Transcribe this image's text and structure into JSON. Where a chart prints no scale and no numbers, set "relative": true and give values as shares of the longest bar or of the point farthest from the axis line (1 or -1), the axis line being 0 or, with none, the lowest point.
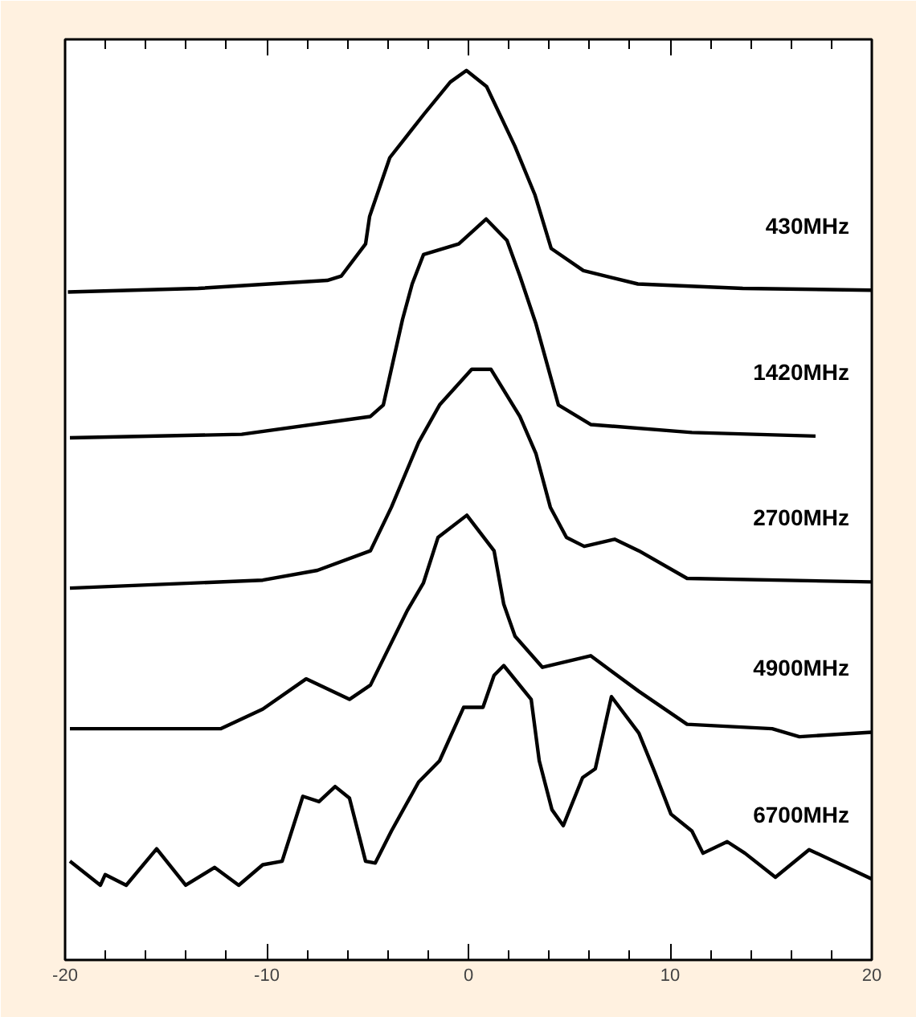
{
  "chart_data": {
    "type": "line",
    "relative": true,
    "xlim": [
      -20,
      20
    ],
    "xticks": [
      -20,
      {
        "value": -18,
        "label": null
      },
      {
        "value": -16,
        "label": null
      },
      {
        "value": -14,
        "label": null
      },
      {
        "value": -12,
        "label": null
      },
      -10,
      {
        "value": -8,
        "label": null
      },
      {
        "value": -6,
        "label": null
      },
      {
        "value": -4,
        "label": null
      },
      {
        "value": -2,
        "label": null
      },
      0,
      {
        "value": 2,
        "label": null
      },
      {
        "value": 4,
        "label": null
      },
      {
        "value": 6,
        "label": null
      },
      {
        "value": 8,
        "label": null
      },
      10,
      {
        "value": 12,
        "label": null
      },
      {
        "value": 14,
        "label": null
      },
      {
        "value": 16,
        "label": null
      },
      {
        "value": 18,
        "label": null
      },
      20
    ],
    "tick_labels": "x",
    "grid": false,
    "marker": "none",
    "line_style": "solid",
    "series": [
      {
        "name": "430MHz",
        "color": "#000000",
        "x": [
          -19.86,
          -13.4,
          -7.0,
          -6.3,
          -5.1,
          -4.9,
          -3.9,
          -2.2,
          -0.9,
          -0.1,
          0.9,
          2.3,
          3.3,
          4.1,
          5.7,
          8.4,
          13.6,
          20
        ],
        "values": [
          0.751,
          0.755,
          0.764,
          0.769,
          0.805,
          0.836,
          0.902,
          0.951,
          0.987,
          1.0,
          0.982,
          0.915,
          0.86,
          0.8,
          0.775,
          0.76,
          0.755,
          0.753
        ]
      },
      {
        "name": "1420MHz",
        "color": "#000000",
        "x": [
          -19.76,
          -11.24,
          -4.86,
          -4.22,
          -3.27,
          -2.79,
          -2.23,
          -0.48,
          0.88,
          1.91,
          2.55,
          3.35,
          4.46,
          6.06,
          11.08,
          17.21
        ],
        "values": [
          0.587,
          0.591,
          0.611,
          0.624,
          0.72,
          0.76,
          0.793,
          0.805,
          0.833,
          0.809,
          0.769,
          0.715,
          0.624,
          0.602,
          0.593,
          0.589
        ]
      },
      {
        "name": "2700MHz",
        "color": "#000000",
        "x": [
          -19.76,
          -10.2,
          -7.49,
          -4.86,
          -3.82,
          -2.47,
          -1.43,
          0.16,
          1.12,
          2.55,
          3.35,
          4.06,
          4.86,
          5.74,
          7.25,
          8.45,
          10.84,
          20
        ],
        "values": [
          0.418,
          0.427,
          0.438,
          0.46,
          0.509,
          0.582,
          0.624,
          0.664,
          0.664,
          0.611,
          0.569,
          0.509,
          0.475,
          0.465,
          0.473,
          0.46,
          0.429,
          0.425
        ]
      },
      {
        "name": "4900MHz",
        "color": "#000000",
        "x": [
          -19.76,
          -12.27,
          -10.2,
          -8.05,
          -5.9,
          -4.86,
          -3.03,
          -2.23,
          -1.51,
          -0.08,
          1.27,
          1.75,
          2.31,
          3.67,
          6.06,
          8.45,
          10.84,
          15.06,
          16.41,
          20
        ],
        "values": [
          0.26,
          0.26,
          0.282,
          0.316,
          0.293,
          0.309,
          0.393,
          0.424,
          0.475,
          0.5,
          0.46,
          0.4,
          0.364,
          0.329,
          0.342,
          0.302,
          0.265,
          0.26,
          0.251,
          0.256
        ]
      },
      {
        "name": "6700MHz",
        "color": "#000000",
        "x": [
          -19.76,
          -18.25,
          -18.01,
          -16.97,
          -15.46,
          -14.02,
          -12.59,
          -11.39,
          -10.2,
          -9.24,
          -8.21,
          -7.41,
          -6.61,
          -5.9,
          -5.1,
          -4.62,
          -3.82,
          -2.47,
          -1.43,
          -0.24,
          0.72,
          1.27,
          1.75,
          3.11,
          3.51,
          4.14,
          4.7,
          5.66,
          6.29,
          7.09,
          8.45,
          9.24,
          10.04,
          11.08,
          11.63,
          12.83,
          13.71,
          15.22,
          16.89,
          20
        ],
        "values": [
          0.111,
          0.084,
          0.096,
          0.084,
          0.125,
          0.084,
          0.104,
          0.084,
          0.107,
          0.111,
          0.184,
          0.178,
          0.195,
          0.182,
          0.111,
          0.109,
          0.145,
          0.2,
          0.224,
          0.284,
          0.284,
          0.32,
          0.331,
          0.293,
          0.224,
          0.169,
          0.151,
          0.205,
          0.215,
          0.296,
          0.255,
          0.211,
          0.164,
          0.145,
          0.12,
          0.133,
          0.12,
          0.093,
          0.124,
          0.091
        ]
      }
    ]
  }
}
